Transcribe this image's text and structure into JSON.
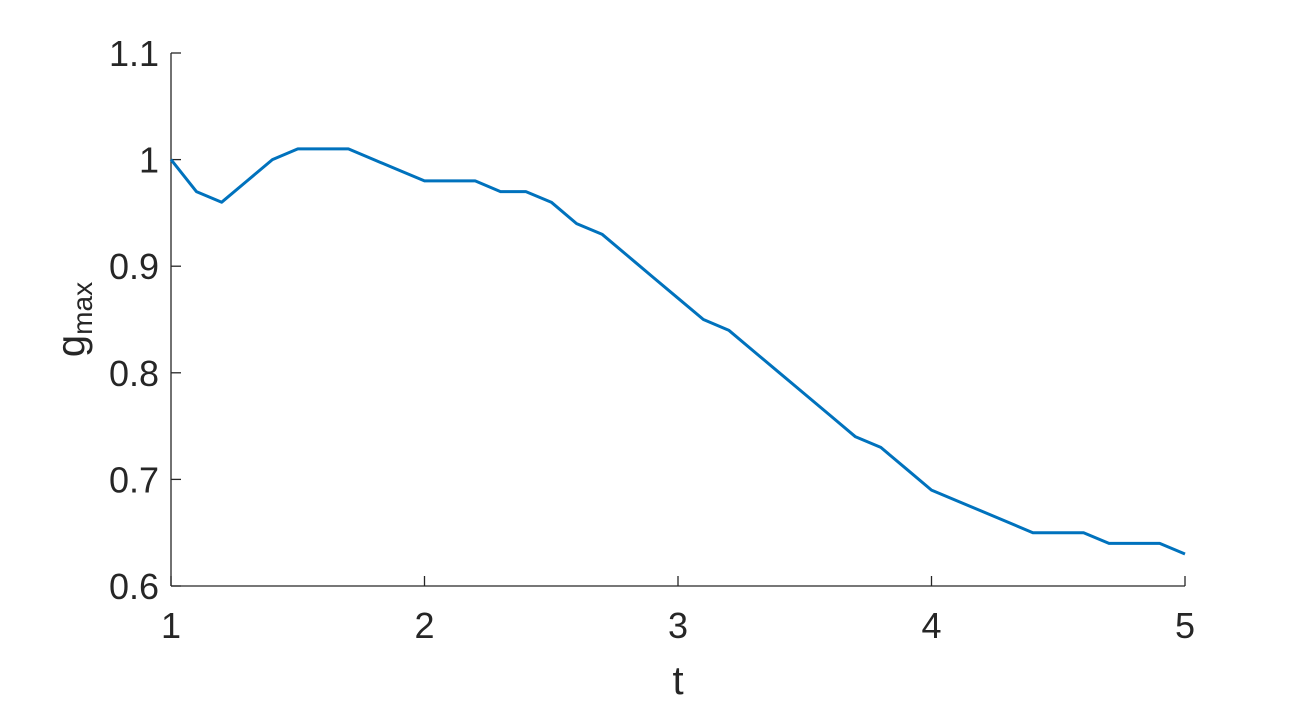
{
  "chart_data": {
    "type": "line",
    "title": "",
    "xlabel": "t",
    "ylabel": "g",
    "ylabel_subscript": "max",
    "xlim": [
      1,
      5
    ],
    "ylim": [
      0.6,
      1.1
    ],
    "xticks": [
      1,
      2,
      3,
      4,
      5
    ],
    "xtick_labels": [
      "1",
      "2",
      "3",
      "4",
      "5"
    ],
    "yticks": [
      0.6,
      0.7,
      0.8,
      0.9,
      1.0,
      1.1
    ],
    "ytick_labels": [
      "0.6",
      "0.7",
      "0.8",
      "0.9",
      "1",
      "1.1"
    ],
    "grid": false,
    "legend": "none",
    "series": [
      {
        "color": "#0072BD",
        "x": [
          1.0,
          1.1,
          1.2,
          1.3,
          1.4,
          1.5,
          1.6,
          1.7,
          1.8,
          1.9,
          2.0,
          2.1,
          2.2,
          2.3,
          2.4,
          2.5,
          2.6,
          2.7,
          2.8,
          2.9,
          3.0,
          3.1,
          3.2,
          3.3,
          3.4,
          3.5,
          3.6,
          3.7,
          3.8,
          3.9,
          4.0,
          4.1,
          4.2,
          4.3,
          4.4,
          4.5,
          4.6,
          4.7,
          4.8,
          4.9,
          5.0
        ],
        "y": [
          1.0,
          0.97,
          0.96,
          0.98,
          1.0,
          1.01,
          1.01,
          1.01,
          1.0,
          0.99,
          0.98,
          0.98,
          0.98,
          0.97,
          0.97,
          0.96,
          0.94,
          0.93,
          0.91,
          0.89,
          0.87,
          0.85,
          0.84,
          0.82,
          0.8,
          0.78,
          0.76,
          0.74,
          0.73,
          0.71,
          0.69,
          0.68,
          0.67,
          0.66,
          0.65,
          0.65,
          0.65,
          0.64,
          0.64,
          0.64,
          0.63
        ]
      }
    ]
  },
  "colors": {
    "axis": "#262626",
    "line": "#0072BD"
  }
}
